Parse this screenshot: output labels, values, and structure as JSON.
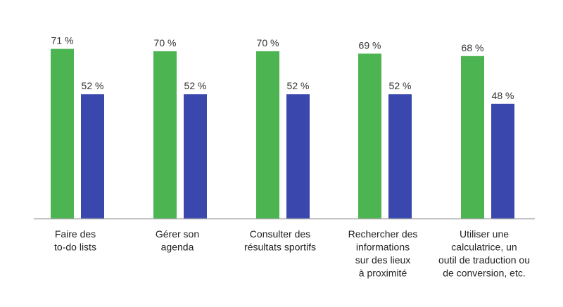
{
  "chart_data": {
    "type": "bar",
    "categories": [
      [
        "Faire des",
        "to-do lists"
      ],
      [
        "Gérer son",
        "agenda"
      ],
      [
        "Consulter des",
        "résultats sportifs"
      ],
      [
        "Rechercher des",
        "informations",
        "sur des lieux",
        "à proximité"
      ],
      [
        "Utiliser une",
        "calculatrice, un",
        "outil de traduction ou",
        "de conversion, etc."
      ]
    ],
    "series": [
      {
        "values": [
          71,
          70,
          70,
          69,
          68
        ],
        "labels": [
          "71 %",
          "70 %",
          "70 %",
          "69 %",
          "68 %"
        ],
        "color": "#4CB551"
      },
      {
        "values": [
          52,
          52,
          52,
          52,
          48
        ],
        "labels": [
          "52 %",
          "52 %",
          "52 %",
          "52 %",
          "48 %"
        ],
        "color": "#3A48AE"
      }
    ],
    "ylim": [
      0,
      100
    ],
    "axis_color": "#A6A6A6",
    "grid": false,
    "legend": "none"
  }
}
